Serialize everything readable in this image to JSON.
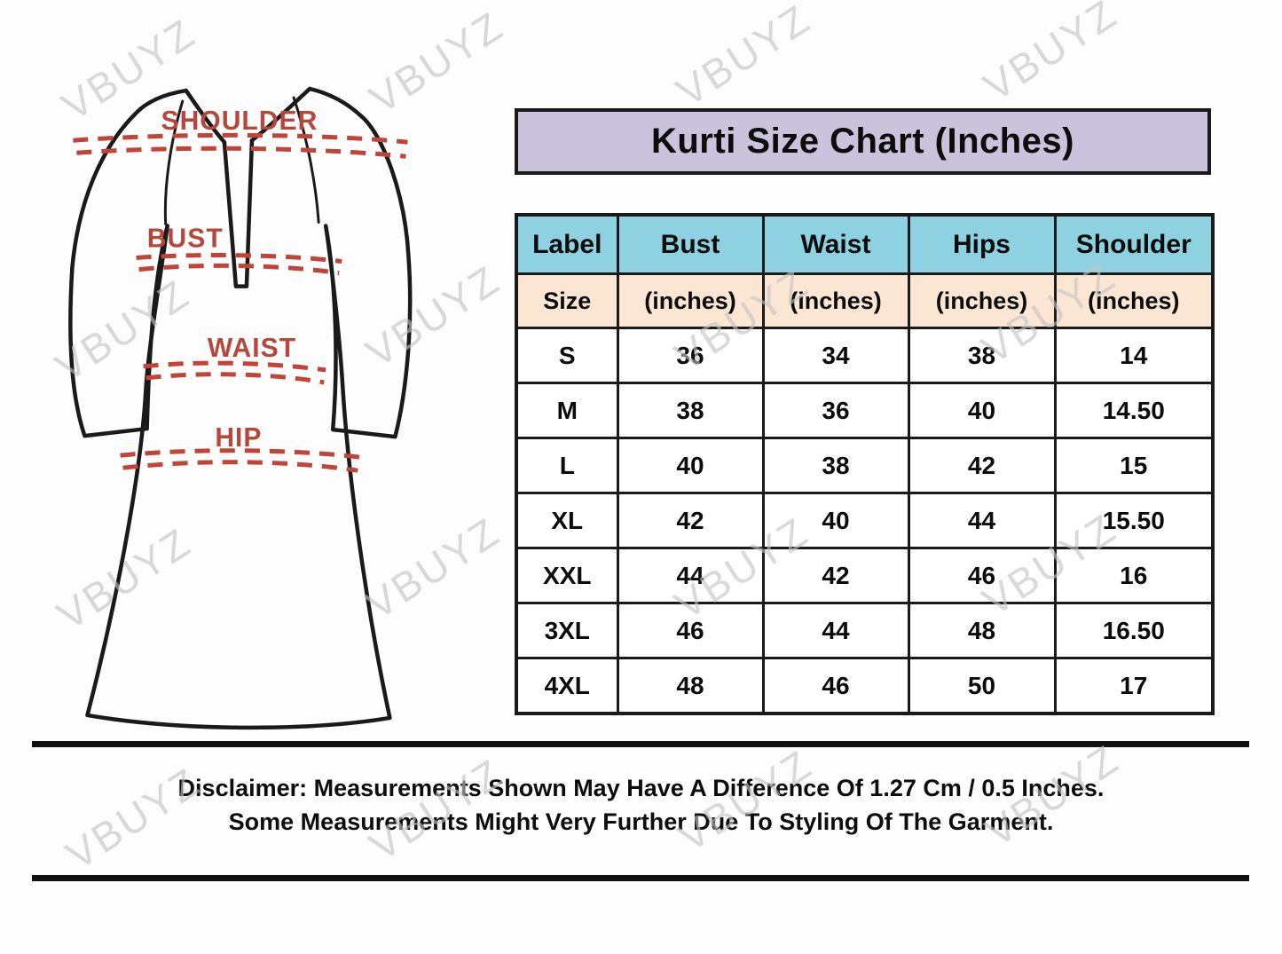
{
  "title": "Kurti Size Chart (Inches)",
  "watermark": {
    "text": "VBUYZ"
  },
  "diagram": {
    "labels": {
      "shoulder": "SHOULDER",
      "bust": "BUST",
      "waist": "WAIST",
      "hip": "HIP"
    }
  },
  "table": {
    "columns": [
      "Label",
      "Bust",
      "Waist",
      "Hips",
      "Shoulder"
    ],
    "subheader": [
      "Size",
      "(inches)",
      "(inches)",
      "(inches)",
      "(inches)"
    ],
    "rows": [
      [
        "S",
        "36",
        "34",
        "38",
        "14"
      ],
      [
        "M",
        "38",
        "36",
        "40",
        "14.50"
      ],
      [
        "L",
        "40",
        "38",
        "42",
        "15"
      ],
      [
        "XL",
        "42",
        "40",
        "44",
        "15.50"
      ],
      [
        "XXL",
        "44",
        "42",
        "46",
        "16"
      ],
      [
        "3XL",
        "46",
        "44",
        "48",
        "16.50"
      ],
      [
        "4XL",
        "48",
        "46",
        "50",
        "17"
      ]
    ]
  },
  "disclaimer": {
    "line1": "Disclaimer: Measurements Shown May Have A Difference Of 1.27 Cm / 0.5 Inches.",
    "line2": "Some Measurements Might Very Further Due To Styling Of The Garment."
  },
  "colors": {
    "title_bg": "#cbc2db",
    "header_bg": "#8ed1e1",
    "subheader_bg": "#fbe6d4",
    "outline_black": "#1a1a1a",
    "measure_red": "#c04437",
    "label_red": "#b5483c",
    "watermark_gray": "#c3c3c3"
  },
  "chart_data": {
    "type": "table",
    "title": "Kurti Size Chart (Inches)",
    "columns": [
      "Label Size",
      "Bust (inches)",
      "Waist (inches)",
      "Hips (inches)",
      "Shoulder (inches)"
    ],
    "rows": [
      [
        "S",
        36,
        34,
        38,
        14
      ],
      [
        "M",
        38,
        36,
        40,
        14.5
      ],
      [
        "L",
        40,
        38,
        42,
        15
      ],
      [
        "XL",
        42,
        40,
        44,
        15.5
      ],
      [
        "XXL",
        44,
        42,
        46,
        16
      ],
      [
        "3XL",
        46,
        44,
        48,
        16.5
      ],
      [
        "4XL",
        48,
        46,
        50,
        17
      ]
    ]
  }
}
